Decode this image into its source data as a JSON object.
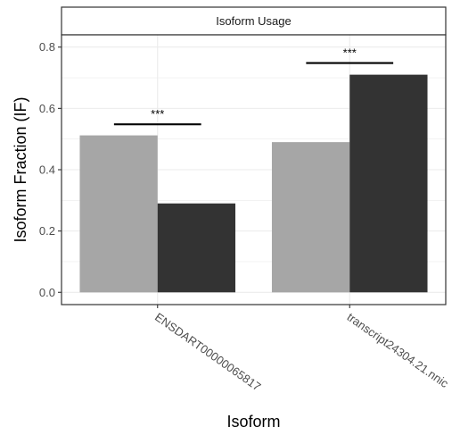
{
  "chart_data": {
    "type": "bar",
    "title": "",
    "facet_label": "Isoform Usage",
    "xlabel": "Isoform",
    "ylabel": "Isoform Fraction (IF)",
    "categories": [
      "ENSDART00000065817",
      "transcript24304.21.nnic"
    ],
    "series": [
      {
        "color": "#a6a6a6",
        "values": [
          0.512,
          0.49
        ]
      },
      {
        "color": "#333333",
        "values": [
          0.29,
          0.71
        ]
      }
    ],
    "significance": [
      {
        "category": "ENSDART00000065817",
        "label": "***",
        "y": 0.548
      },
      {
        "category": "transcript24304.21.nnic",
        "label": "***",
        "y": 0.748
      }
    ],
    "ylim": [
      -0.04,
      0.84
    ],
    "yticks": [
      0.0,
      0.2,
      0.4,
      0.6,
      0.8
    ],
    "ytick_labels": [
      "0.0",
      "0.2",
      "0.4",
      "0.6",
      "0.8"
    ],
    "grid": true,
    "legend": "none"
  }
}
